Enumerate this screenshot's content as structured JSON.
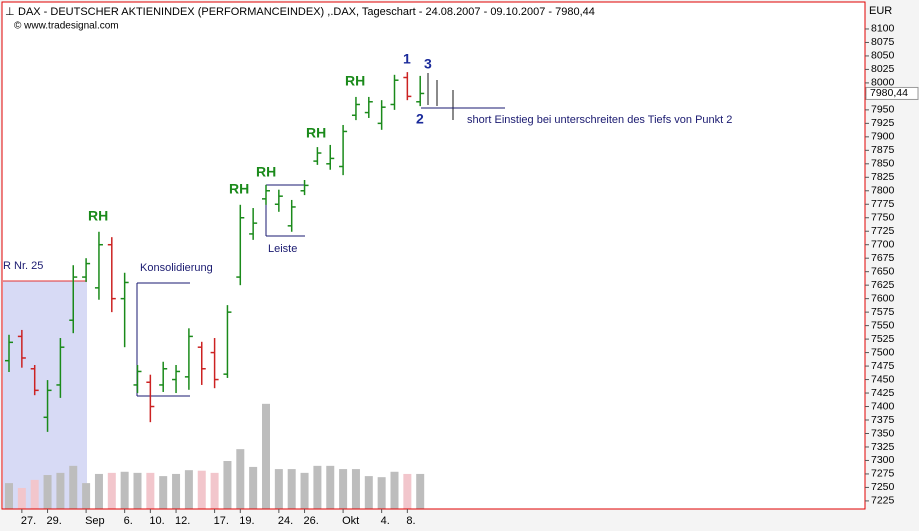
{
  "chart_data": {
    "type": "ohlc",
    "title": "DAX - DEUTSCHER AKTIENINDEX (PERFORMANCEINDEX) ,.DAX, Tageschart - 24.08.2007 - 09.10.2007 - 7980,44",
    "subtitle": "© www.tradesignal.com",
    "y_axis_label": "EUR",
    "categories": [
      null,
      "27.",
      null,
      "29.",
      null,
      null,
      "Sep",
      null,
      null,
      "6.",
      null,
      "10.",
      null,
      "12.",
      null,
      null,
      "17.",
      null,
      "19.",
      null,
      null,
      "24.",
      null,
      "26.",
      null,
      null,
      "Okt",
      null,
      null,
      "4.",
      null,
      "8.",
      null
    ],
    "open": [
      7485,
      7530,
      7470,
      7380,
      7440,
      7560,
      7640,
      7620,
      7700,
      7600,
      7440,
      7445,
      7440,
      7450,
      7455,
      7510,
      7500,
      7460,
      7640,
      7720,
      7785,
      7775,
      7735,
      7800,
      7855,
      7850,
      7845,
      7940,
      7945,
      7925,
      7960,
      8010,
      7965
    ],
    "high": [
      7533,
      7542,
      7477,
      7449,
      7527,
      7662,
      7675,
      7724,
      7714,
      7648,
      7477,
      7459,
      7483,
      7477,
      7545,
      7520,
      7527,
      7588,
      7774,
      7768,
      7811,
      7802,
      7783,
      7820,
      7881,
      7885,
      7922,
      7974,
      7974,
      7968,
      8015,
      8020,
      8013
    ],
    "low": [
      7464,
      7472,
      7421,
      7353,
      7416,
      7536,
      7631,
      7598,
      7575,
      7510,
      7425,
      7371,
      7427,
      7425,
      7431,
      7440,
      7434,
      7453,
      7625,
      7709,
      7774,
      7761,
      7724,
      7792,
      7848,
      7839,
      7829,
      7931,
      7935,
      7913,
      7950,
      7968,
      7957
    ],
    "close": [
      7519,
      7490,
      7430,
      7430,
      7510,
      7640,
      7665,
      7700,
      7600,
      7630,
      7465,
      7400,
      7470,
      7465,
      7530,
      7470,
      7450,
      7575,
      7750,
      7740,
      7800,
      7790,
      7770,
      7810,
      7870,
      7860,
      7910,
      7960,
      7965,
      7955,
      8005,
      7975,
      7980.44
    ],
    "volume": [
      7258,
      7249,
      7264,
      7273,
      7277,
      7290,
      7258,
      7275,
      7277,
      7279,
      7277,
      7277,
      7271,
      7275,
      7282,
      7281,
      7277,
      7299,
      7321,
      7288,
      7405,
      7284,
      7284,
      7277,
      7290,
      7290,
      7284,
      7284,
      7271,
      7269,
      7279,
      7275,
      7275
    ],
    "up_color": "#1a8a1a",
    "down_color": "#cc2222",
    "volume_up_color": "#bdbdbd",
    "volume_down_color": "#f2c6cc",
    "ylim": [
      7210,
      8150
    ],
    "yticks": [
      7225,
      7250,
      7275,
      7300,
      7325,
      7350,
      7375,
      7400,
      7425,
      7450,
      7475,
      7500,
      7525,
      7550,
      7575,
      7600,
      7625,
      7650,
      7675,
      7700,
      7725,
      7750,
      7775,
      7800,
      7825,
      7850,
      7875,
      7900,
      7925,
      7950,
      7975,
      8000,
      8025,
      8050,
      8075,
      8100
    ],
    "last_price": {
      "value": 7980.44,
      "label": "7980,44"
    },
    "annotations": [
      "RH",
      "RH",
      "RH",
      "RH",
      "RH",
      "R Nr. 25",
      "Konsolidierung",
      "Leiste",
      "1",
      "2",
      "3",
      "short Einstieg bei unterschreiten des Tiefs von Punkt 2"
    ]
  }
}
